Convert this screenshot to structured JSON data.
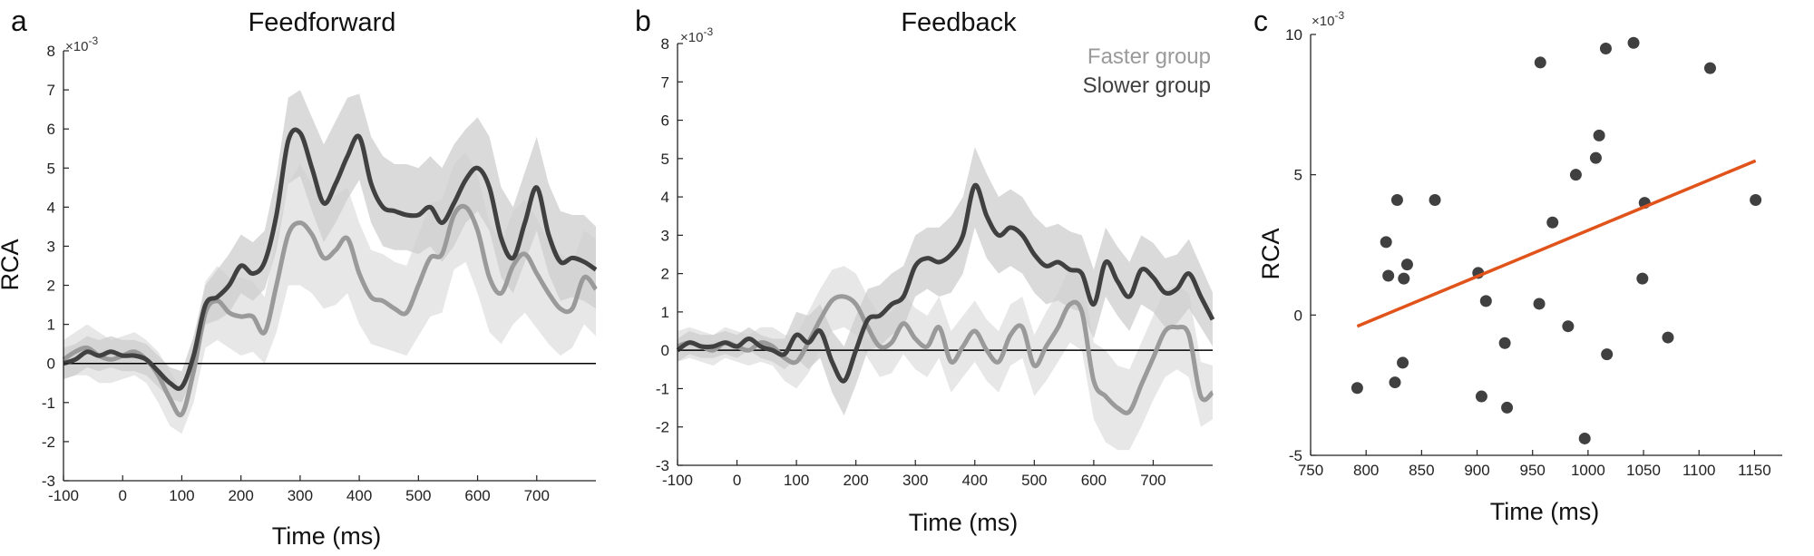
{
  "colors": {
    "faster": "#9a9a9a",
    "faster_band": "#e3e3e3",
    "slower": "#404040",
    "slower_band": "#cdcdcd",
    "scatter_points": "#404040",
    "fit_line": "#e0531b",
    "axis": "#222222"
  },
  "legend": {
    "faster": "Faster group",
    "slower": "Slower group"
  },
  "chart_data": [
    {
      "panel": "a",
      "type": "line",
      "title": "Feedforward",
      "xlabel": "Time (ms)",
      "ylabel": "RCA",
      "y_exponent": "× 10^-3",
      "y_exp_base": "×10",
      "y_exp_power": "-3",
      "xlim": [
        -100,
        800
      ],
      "ylim": [
        -3,
        8
      ],
      "xticks": [
        -100,
        0,
        100,
        200,
        300,
        400,
        500,
        600,
        700
      ],
      "xtick_labels": [
        "-100",
        "0",
        "100",
        "200",
        "300",
        "400",
        "500",
        "600",
        "700"
      ],
      "yticks": [
        -3,
        -2,
        -1,
        0,
        1,
        2,
        3,
        4,
        5,
        6,
        7,
        8
      ],
      "ytick_labels": [
        "-3",
        "-2",
        "-1",
        "0",
        "1",
        "2",
        "3",
        "4",
        "5",
        "6",
        "7",
        "8"
      ],
      "x": [
        -100,
        -80,
        -60,
        -40,
        -20,
        0,
        20,
        40,
        60,
        80,
        100,
        120,
        140,
        160,
        180,
        200,
        220,
        240,
        260,
        280,
        300,
        320,
        340,
        360,
        380,
        400,
        420,
        440,
        460,
        480,
        500,
        520,
        540,
        560,
        580,
        600,
        620,
        640,
        660,
        680,
        700,
        720,
        740,
        760,
        780,
        800
      ],
      "series": [
        {
          "name": "Faster group",
          "color_key": "faster",
          "values": [
            0.1,
            0.3,
            0.4,
            0.2,
            0.1,
            0.2,
            0.3,
            0.1,
            -0.3,
            -0.9,
            -1.3,
            -0.2,
            1.3,
            1.6,
            1.3,
            1.2,
            1.2,
            0.8,
            2.0,
            3.3,
            3.6,
            3.3,
            2.7,
            2.9,
            3.2,
            2.3,
            1.7,
            1.6,
            1.4,
            1.3,
            2.0,
            2.7,
            2.8,
            3.8,
            4.0,
            3.4,
            2.2,
            1.8,
            2.5,
            2.8,
            2.3,
            1.8,
            1.4,
            1.4,
            2.2,
            1.9
          ],
          "lower": [
            -0.4,
            -0.3,
            -0.3,
            -0.5,
            -0.5,
            -0.4,
            -0.3,
            -0.5,
            -1.0,
            -1.6,
            -1.8,
            -1.0,
            0.4,
            0.6,
            0.4,
            0.2,
            0.3,
            0.0,
            0.8,
            2.0,
            2.0,
            1.8,
            1.4,
            1.5,
            1.8,
            1.0,
            0.5,
            0.4,
            0.3,
            0.2,
            0.7,
            1.2,
            1.3,
            2.4,
            2.6,
            1.8,
            0.8,
            0.5,
            1.0,
            1.3,
            0.9,
            0.5,
            0.2,
            0.4,
            1.0,
            0.7
          ],
          "upper": [
            0.6,
            0.8,
            1.0,
            0.8,
            0.6,
            0.7,
            0.8,
            0.6,
            0.3,
            -0.2,
            -0.7,
            0.6,
            2.1,
            2.5,
            2.2,
            2.2,
            2.1,
            1.7,
            3.2,
            4.6,
            5.1,
            4.6,
            4.0,
            4.3,
            4.5,
            3.6,
            2.9,
            2.8,
            2.6,
            2.5,
            3.3,
            4.1,
            4.2,
            5.1,
            5.4,
            4.8,
            3.6,
            3.1,
            3.9,
            4.2,
            3.7,
            3.1,
            2.8,
            2.6,
            3.4,
            3.2
          ]
        },
        {
          "name": "Slower group",
          "color_key": "slower",
          "values": [
            0.0,
            0.1,
            0.3,
            0.2,
            0.3,
            0.2,
            0.2,
            0.1,
            -0.2,
            -0.5,
            -0.6,
            0.2,
            1.5,
            1.7,
            2.0,
            2.5,
            2.3,
            2.6,
            3.8,
            5.7,
            5.9,
            5.0,
            4.1,
            4.6,
            5.3,
            5.8,
            4.6,
            4.0,
            3.9,
            3.8,
            3.8,
            4.0,
            3.6,
            4.1,
            4.7,
            5.0,
            4.5,
            3.2,
            2.7,
            3.6,
            4.5,
            3.3,
            2.6,
            2.7,
            2.6,
            2.4
          ],
          "lower": [
            -0.4,
            -0.3,
            -0.1,
            -0.2,
            -0.1,
            -0.2,
            -0.2,
            -0.3,
            -0.6,
            -0.9,
            -1.0,
            -0.3,
            1.0,
            1.1,
            1.3,
            1.8,
            1.6,
            1.9,
            2.9,
            4.6,
            4.8,
            3.9,
            3.1,
            3.6,
            4.2,
            4.7,
            3.6,
            3.0,
            2.9,
            2.9,
            2.8,
            3.0,
            2.6,
            3.0,
            3.6,
            3.9,
            3.4,
            2.2,
            1.8,
            2.6,
            3.4,
            2.3,
            1.6,
            1.7,
            1.6,
            1.4
          ],
          "upper": [
            0.4,
            0.5,
            0.7,
            0.6,
            0.7,
            0.6,
            0.6,
            0.5,
            0.2,
            -0.1,
            -0.2,
            0.7,
            2.0,
            2.4,
            2.8,
            3.3,
            3.1,
            3.4,
            4.8,
            6.8,
            7.0,
            6.3,
            5.6,
            6.2,
            6.8,
            6.9,
            5.8,
            5.3,
            5.1,
            5.1,
            5.0,
            5.3,
            5.0,
            5.6,
            6.0,
            6.3,
            5.8,
            4.5,
            4.0,
            4.9,
            5.8,
            4.6,
            3.9,
            3.8,
            3.8,
            3.5
          ]
        }
      ]
    },
    {
      "panel": "b",
      "type": "line",
      "title": "Feedback",
      "xlabel": "Time (ms)",
      "ylabel": "",
      "y_exponent": "× 10^-3",
      "y_exp_base": "×10",
      "y_exp_power": "-3",
      "xlim": [
        -100,
        800
      ],
      "ylim": [
        -3,
        8
      ],
      "xticks": [
        -100,
        0,
        100,
        200,
        300,
        400,
        500,
        600,
        700
      ],
      "xtick_labels": [
        "-100",
        "0",
        "100",
        "200",
        "300",
        "400",
        "500",
        "600",
        "700"
      ],
      "yticks": [
        -3,
        -2,
        -1,
        0,
        1,
        2,
        3,
        4,
        5,
        6,
        7,
        8
      ],
      "ytick_labels": [
        "-3",
        "-2",
        "-1",
        "0",
        "1",
        "2",
        "3",
        "4",
        "5",
        "6",
        "7",
        "8"
      ],
      "x": [
        -100,
        -80,
        -60,
        -40,
        -20,
        0,
        20,
        40,
        60,
        80,
        100,
        120,
        140,
        160,
        180,
        200,
        220,
        240,
        260,
        280,
        300,
        320,
        340,
        360,
        380,
        400,
        420,
        440,
        460,
        480,
        500,
        520,
        540,
        560,
        580,
        600,
        620,
        640,
        660,
        680,
        700,
        720,
        740,
        760,
        780,
        800
      ],
      "series": [
        {
          "name": "Faster group",
          "color_key": "faster",
          "values": [
            0.1,
            0.2,
            0.1,
            0.0,
            0.2,
            0.1,
            0.0,
            0.2,
            0.1,
            -0.2,
            -0.3,
            0.2,
            0.8,
            1.3,
            1.4,
            1.2,
            0.6,
            0.1,
            0.2,
            0.7,
            0.3,
            0.1,
            0.6,
            -0.3,
            0.1,
            0.5,
            0.0,
            -0.3,
            0.4,
            0.6,
            -0.4,
            0.1,
            0.6,
            1.2,
            1.0,
            -0.8,
            -1.2,
            -1.5,
            -1.6,
            -0.9,
            -0.2,
            0.5,
            0.6,
            0.4,
            -1.2,
            -1.1
          ],
          "lower": [
            -0.3,
            -0.2,
            -0.3,
            -0.4,
            -0.2,
            -0.3,
            -0.4,
            -0.3,
            -0.4,
            -0.8,
            -1.0,
            -0.6,
            0.0,
            0.5,
            0.6,
            0.4,
            -0.2,
            -0.7,
            -0.6,
            -0.1,
            -0.5,
            -0.7,
            -0.2,
            -1.1,
            -0.7,
            -0.3,
            -0.8,
            -1.1,
            -0.4,
            -0.2,
            -1.2,
            -0.8,
            -0.3,
            0.2,
            0.0,
            -1.8,
            -2.4,
            -2.6,
            -2.6,
            -2.0,
            -1.3,
            -0.7,
            -0.5,
            -0.7,
            -2.0,
            -1.8
          ],
          "upper": [
            0.5,
            0.6,
            0.5,
            0.4,
            0.6,
            0.5,
            0.4,
            0.6,
            0.6,
            0.4,
            0.4,
            1.0,
            1.6,
            2.1,
            2.2,
            2.0,
            1.4,
            0.9,
            1.0,
            1.5,
            1.1,
            0.9,
            1.4,
            0.5,
            0.9,
            1.3,
            0.8,
            0.5,
            1.2,
            1.4,
            0.4,
            1.0,
            1.5,
            2.2,
            2.0,
            0.2,
            0.0,
            -0.4,
            -0.5,
            0.2,
            0.9,
            1.6,
            1.7,
            1.5,
            -0.3,
            -0.4
          ]
        },
        {
          "name": "Slower group",
          "color_key": "slower",
          "values": [
            0.0,
            0.2,
            0.1,
            0.1,
            0.2,
            0.1,
            0.3,
            0.1,
            0.0,
            -0.1,
            0.4,
            0.2,
            0.5,
            -0.3,
            -0.8,
            0.0,
            0.8,
            0.9,
            1.2,
            1.4,
            2.2,
            2.4,
            2.3,
            2.5,
            3.0,
            4.3,
            3.5,
            3.0,
            3.2,
            3.0,
            2.5,
            2.2,
            2.3,
            2.1,
            2.0,
            1.2,
            2.3,
            1.8,
            1.4,
            2.1,
            1.9,
            1.5,
            1.6,
            2.0,
            1.4,
            0.8
          ],
          "lower": [
            -0.3,
            -0.1,
            -0.2,
            -0.2,
            -0.1,
            -0.2,
            0.0,
            -0.2,
            -0.3,
            -0.5,
            -0.2,
            -0.5,
            -0.2,
            -1.1,
            -1.7,
            -0.9,
            0.0,
            0.1,
            0.4,
            0.6,
            1.4,
            1.6,
            1.4,
            1.5,
            2.0,
            3.2,
            2.4,
            2.0,
            2.2,
            2.0,
            1.5,
            1.2,
            1.3,
            1.1,
            1.0,
            0.3,
            1.4,
            0.9,
            0.5,
            1.2,
            1.0,
            0.6,
            0.7,
            1.1,
            0.6,
            0.1
          ],
          "upper": [
            0.3,
            0.5,
            0.4,
            0.4,
            0.5,
            0.4,
            0.6,
            0.4,
            0.3,
            0.3,
            1.0,
            0.9,
            1.2,
            0.5,
            0.1,
            0.9,
            1.6,
            1.7,
            2.0,
            2.2,
            3.0,
            3.2,
            3.2,
            3.5,
            4.0,
            5.3,
            4.6,
            4.0,
            4.2,
            4.0,
            3.5,
            3.2,
            3.3,
            3.1,
            3.0,
            2.1,
            3.2,
            2.7,
            2.3,
            3.0,
            2.8,
            2.4,
            2.5,
            2.9,
            2.2,
            1.5
          ]
        }
      ]
    },
    {
      "panel": "c",
      "type": "scatter",
      "title": "",
      "xlabel": "Time (ms)",
      "ylabel": "RCA",
      "y_exponent": "× 10^-3",
      "y_exp_base": "×10",
      "y_exp_power": "-3",
      "xlim": [
        750,
        1175
      ],
      "ylim": [
        -5,
        10
      ],
      "xticks": [
        750,
        800,
        850,
        900,
        950,
        1000,
        1050,
        1100,
        1150
      ],
      "xtick_labels": [
        "750",
        "800",
        "850",
        "900",
        "950",
        "1000",
        "1050",
        "1100",
        "1150"
      ],
      "yticks": [
        -5,
        0,
        5,
        10
      ],
      "ytick_labels": [
        "-5",
        "0",
        "5",
        "10"
      ],
      "points": [
        {
          "x": 792,
          "y": -2.6
        },
        {
          "x": 818,
          "y": 2.6
        },
        {
          "x": 820,
          "y": 1.4
        },
        {
          "x": 826,
          "y": -2.4
        },
        {
          "x": 828,
          "y": 4.1
        },
        {
          "x": 833,
          "y": -1.7
        },
        {
          "x": 834,
          "y": 1.3
        },
        {
          "x": 837,
          "y": 1.8
        },
        {
          "x": 862,
          "y": 4.1
        },
        {
          "x": 901,
          "y": 1.5
        },
        {
          "x": 904,
          "y": -2.9
        },
        {
          "x": 908,
          "y": 0.5
        },
        {
          "x": 925,
          "y": -1.0
        },
        {
          "x": 927,
          "y": -3.3
        },
        {
          "x": 956,
          "y": 0.4
        },
        {
          "x": 957,
          "y": 9.0
        },
        {
          "x": 968,
          "y": 3.3
        },
        {
          "x": 982,
          "y": -0.4
        },
        {
          "x": 989,
          "y": 5.0
        },
        {
          "x": 997,
          "y": -4.4
        },
        {
          "x": 1007,
          "y": 5.6
        },
        {
          "x": 1010,
          "y": 6.4
        },
        {
          "x": 1016,
          "y": 9.5
        },
        {
          "x": 1017,
          "y": -1.4
        },
        {
          "x": 1041,
          "y": 9.7
        },
        {
          "x": 1049,
          "y": 1.3
        },
        {
          "x": 1051,
          "y": 4.0
        },
        {
          "x": 1072,
          "y": -0.8
        },
        {
          "x": 1110,
          "y": 8.8
        },
        {
          "x": 1151,
          "y": 4.1
        }
      ],
      "fit": {
        "x": [
          792,
          1151
        ],
        "y": [
          -0.4,
          5.5
        ]
      }
    }
  ]
}
